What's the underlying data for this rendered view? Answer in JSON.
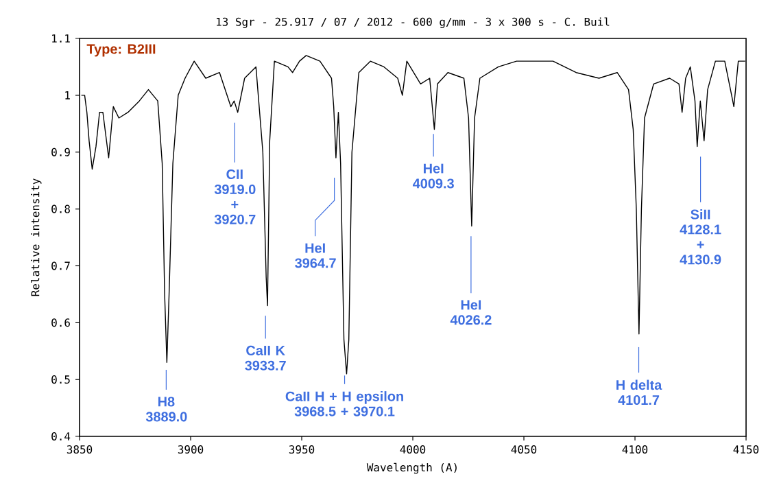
{
  "chart_data": {
    "type": "line",
    "title": "13 Sgr - 25.917 / 07 / 2012 - 600 g/mm - 3  x 300 s - C. Buil",
    "xlabel": "Wavelength (A)",
    "ylabel": "Relative intensity",
    "xlim": [
      3850,
      4150
    ],
    "ylim": [
      0.4,
      1.1
    ],
    "xticks": [
      3850,
      3900,
      3950,
      4000,
      4050,
      4100,
      4150
    ],
    "yticks": [
      0.4,
      0.5,
      0.6,
      0.7,
      0.8,
      0.9,
      1,
      1.1
    ],
    "grid": false,
    "marker": "none",
    "line_style": "solid",
    "series": [
      {
        "color": "#000000",
        "x": [
          3850.8,
          3852.3,
          3853.3,
          3854.3,
          3855.7,
          3857.4,
          3859.0,
          3860.5,
          3863.1,
          3865.2,
          3867.7,
          3871.8,
          3876.9,
          3881.0,
          3885.2,
          3887.2,
          3888.3,
          3889.3,
          3890.3,
          3892.0,
          3894.4,
          3897.5,
          3901.6,
          3906.8,
          3913.0,
          3918.1,
          3919.6,
          3921.2,
          3924.3,
          3929.4,
          3932.5,
          3934.0,
          3934.6,
          3935.6,
          3937.7,
          3943.8,
          3945.9,
          3949.0,
          3952.0,
          3958.2,
          3963.4,
          3964.4,
          3965.4,
          3966.5,
          3967.5,
          3969.0,
          3970.2,
          3971.2,
          3972.6,
          3975.7,
          3980.9,
          3987.0,
          3993.2,
          3995.3,
          3997.3,
          4003.5,
          4007.6,
          4009.7,
          4011.1,
          4015.8,
          4023.0,
          4025.1,
          4026.5,
          4027.8,
          4030.2,
          4038.5,
          4046.7,
          4054.9,
          4063.1,
          4073.5,
          4083.8,
          4092.0,
          4097.1,
          4099.2,
          4100.6,
          4101.8,
          4102.9,
          4104.3,
          4108.4,
          4115.6,
          4119.8,
          4121.2,
          4122.8,
          4124.9,
          4127.0,
          4128.0,
          4129.4,
          4131.1,
          4132.7,
          4136.2,
          4140.4,
          4143.5,
          4144.5,
          4146.5,
          4149.6
        ],
        "values": [
          1.0,
          1.0,
          0.97,
          0.92,
          0.87,
          0.91,
          0.97,
          0.97,
          0.89,
          0.98,
          0.96,
          0.97,
          0.99,
          1.01,
          0.99,
          0.88,
          0.65,
          0.53,
          0.65,
          0.88,
          1.0,
          1.03,
          1.06,
          1.03,
          1.04,
          0.98,
          0.99,
          0.97,
          1.03,
          1.05,
          0.9,
          0.68,
          0.63,
          0.92,
          1.06,
          1.05,
          1.04,
          1.06,
          1.07,
          1.06,
          1.03,
          0.98,
          0.89,
          0.97,
          0.88,
          0.57,
          0.51,
          0.57,
          0.9,
          1.04,
          1.06,
          1.05,
          1.03,
          1.0,
          1.06,
          1.02,
          1.03,
          0.94,
          1.02,
          1.04,
          1.03,
          0.96,
          0.77,
          0.96,
          1.03,
          1.05,
          1.06,
          1.06,
          1.06,
          1.04,
          1.03,
          1.04,
          1.01,
          0.94,
          0.8,
          0.58,
          0.8,
          0.96,
          1.02,
          1.03,
          1.02,
          0.97,
          1.03,
          1.05,
          0.99,
          0.91,
          0.99,
          0.92,
          1.01,
          1.06,
          1.06,
          1.0,
          0.98,
          1.06,
          1.06
        ]
      }
    ],
    "annotations": [
      "Type: B2III",
      "H8 3889.0",
      "CII 3919.0 + 3920.7",
      "CaII K 3933.7",
      "HeI 3964.7",
      "CaII H + H epsilon 3968.5 + 3970.1",
      "HeI 4009.3",
      "HeI 4026.2",
      "H delta 4101.7",
      "SiII 4128.1 + 4130.9"
    ]
  }
}
